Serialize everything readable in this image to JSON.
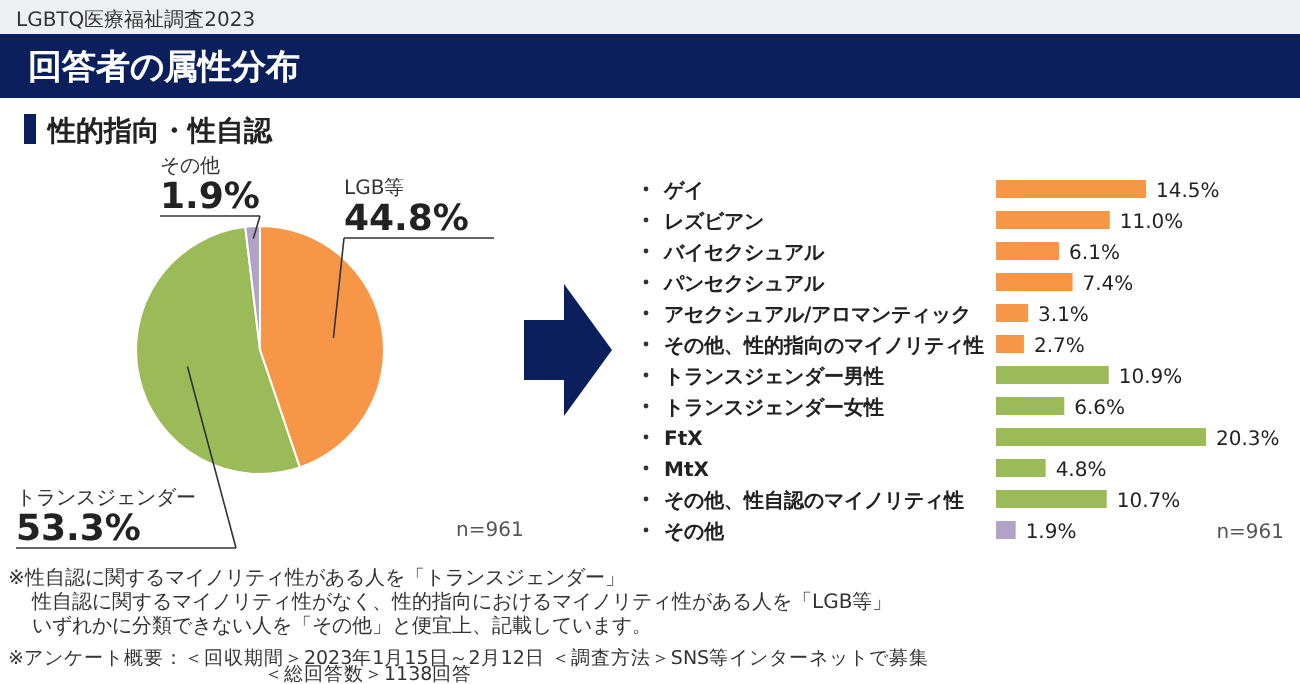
{
  "chart_data": [
    {
      "type": "pie",
      "title": "回答者の属性分布",
      "subtitle": "性的指向・性自認",
      "categories": [
        "LGB等",
        "トランスジェンダー",
        "その他"
      ],
      "values": [
        44.8,
        53.3,
        1.9
      ],
      "value_labels": [
        "44.8%",
        "53.3%",
        "1.9%"
      ],
      "colors": [
        "#f79646",
        "#9bbb59",
        "#b3a2c7"
      ],
      "annotations": [
        "LGBTQ医療福祉調査2023",
        "n=961",
        "※性自認に関するマイノリティ性がある人を「トランスジェンダー」",
        "性自認に関するマイノリティ性がなく、性的指向におけるマイノリティ性がある人を「LGB等」",
        "いずれかに分類できない人を「その他」と便宜上、記載しています。",
        "※アンケート概要：＜回収期間＞2023年1月15日～2月12日 ＜調査方法＞SNS等インターネットで募集",
        "＜総回答数＞1138回答"
      ]
    },
    {
      "type": "bar",
      "orientation": "horizontal",
      "categories": [
        "ゲイ",
        "レズビアン",
        "バイセクシュアル",
        "パンセクシュアル",
        "アセクシュアル/アロマンティック",
        "その他、性的指向のマイノリティ性",
        "トランスジェンダー男性",
        "トランスジェンダー女性",
        "FtX",
        "MtX",
        "その他、性自認のマイノリティ性",
        "その他"
      ],
      "values": [
        14.5,
        11.0,
        6.1,
        7.4,
        3.1,
        2.7,
        10.9,
        6.6,
        20.3,
        4.8,
        10.7,
        1.9
      ],
      "value_labels": [
        "14.5%",
        "11.0%",
        "6.1%",
        "7.4%",
        "3.1%",
        "2.7%",
        "10.9%",
        "6.6%",
        "20.3%",
        "4.8%",
        "10.7%",
        "1.9%"
      ],
      "colors": [
        "#f79646",
        "#f79646",
        "#f79646",
        "#f79646",
        "#f79646",
        "#f79646",
        "#9bbb59",
        "#9bbb59",
        "#9bbb59",
        "#9bbb59",
        "#9bbb59",
        "#b3a2c7"
      ],
      "annotations": [
        "n=961"
      ]
    }
  ]
}
